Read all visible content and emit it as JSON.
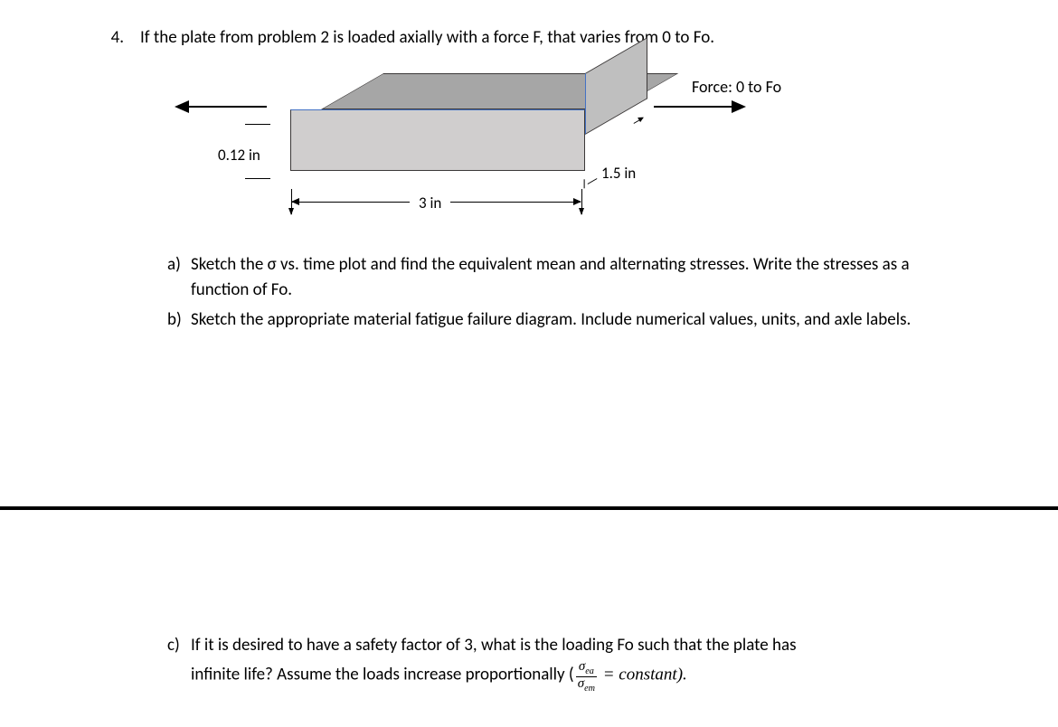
{
  "problem": {
    "number": "4.",
    "stem": "If the plate from problem 2  is loaded axially with a force F, that varies from 0 to Fo."
  },
  "figure": {
    "force_label": "Force: 0  to Fo",
    "thickness": "0.12 in",
    "depth": "1.5 in",
    "width": "3 in",
    "colors": {
      "top_face": "#a6a6a6",
      "front_face": "#d0cece",
      "side_face": "#bfbfbf",
      "edge": "#3b3838",
      "accent_edge": "#4472c4"
    }
  },
  "parts": {
    "a": {
      "letter": "a)",
      "text": "Sketch the σ vs. time plot and find the equivalent mean and alternating stresses.  Write the stresses as a function of Fo."
    },
    "b": {
      "letter": "b)",
      "text": "Sketch the appropriate material fatigue failure diagram. Include numerical values, units, and axle labels."
    },
    "c": {
      "letter": "c)",
      "line1": "If it is desired to have a safety factor of 3, what is the loading Fo such that the plate has",
      "line2_pre": "infinite life?  Assume the loads increase proportionally (",
      "frac_num": "σ",
      "frac_num_sub": "ea",
      "frac_den": "σ",
      "frac_den_sub": "em",
      "line2_post": " =  constant)."
    }
  }
}
